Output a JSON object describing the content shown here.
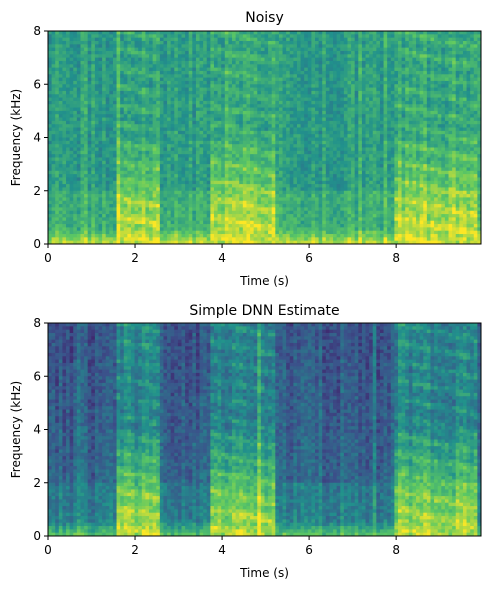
{
  "chart_data": [
    {
      "type": "heatmap",
      "title": "Noisy",
      "xlabel": "Time (s)",
      "ylabel": "Frequency (kHz)",
      "xlim": [
        0,
        9.95
      ],
      "ylim": [
        0,
        8
      ],
      "xticks": [
        0,
        2,
        4,
        6,
        8
      ],
      "xtick_labels": [
        "0",
        "2",
        "4",
        "6",
        "8"
      ],
      "yticks": [
        0,
        2,
        4,
        6,
        8
      ],
      "ytick_labels": [
        "0",
        "2",
        "4",
        "6",
        "8"
      ],
      "colormap": "viridis",
      "speech_segments_s": [
        [
          1.6,
          2.6
        ],
        [
          3.7,
          5.2
        ],
        [
          8.0,
          9.9
        ]
      ],
      "background_level": 0.55,
      "speech_level": 0.9
    },
    {
      "type": "heatmap",
      "title": "Simple DNN Estimate",
      "xlabel": "Time (s)",
      "ylabel": "Frequency (kHz)",
      "xlim": [
        0,
        9.95
      ],
      "ylim": [
        0,
        8
      ],
      "xticks": [
        0,
        2,
        4,
        6,
        8
      ],
      "xtick_labels": [
        "0",
        "2",
        "4",
        "6",
        "8"
      ],
      "yticks": [
        0,
        2,
        4,
        6,
        8
      ],
      "ytick_labels": [
        "0",
        "2",
        "4",
        "6",
        "8"
      ],
      "colormap": "viridis",
      "speech_segments_s": [
        [
          1.6,
          2.6
        ],
        [
          3.7,
          5.2
        ],
        [
          8.0,
          9.9
        ]
      ],
      "background_level": 0.4,
      "speech_level": 0.85
    }
  ],
  "colors": {
    "viridis_dark": "#3b528b",
    "viridis_mid": "#21918c",
    "viridis_light": "#5ec962",
    "viridis_bright": "#fde725"
  }
}
